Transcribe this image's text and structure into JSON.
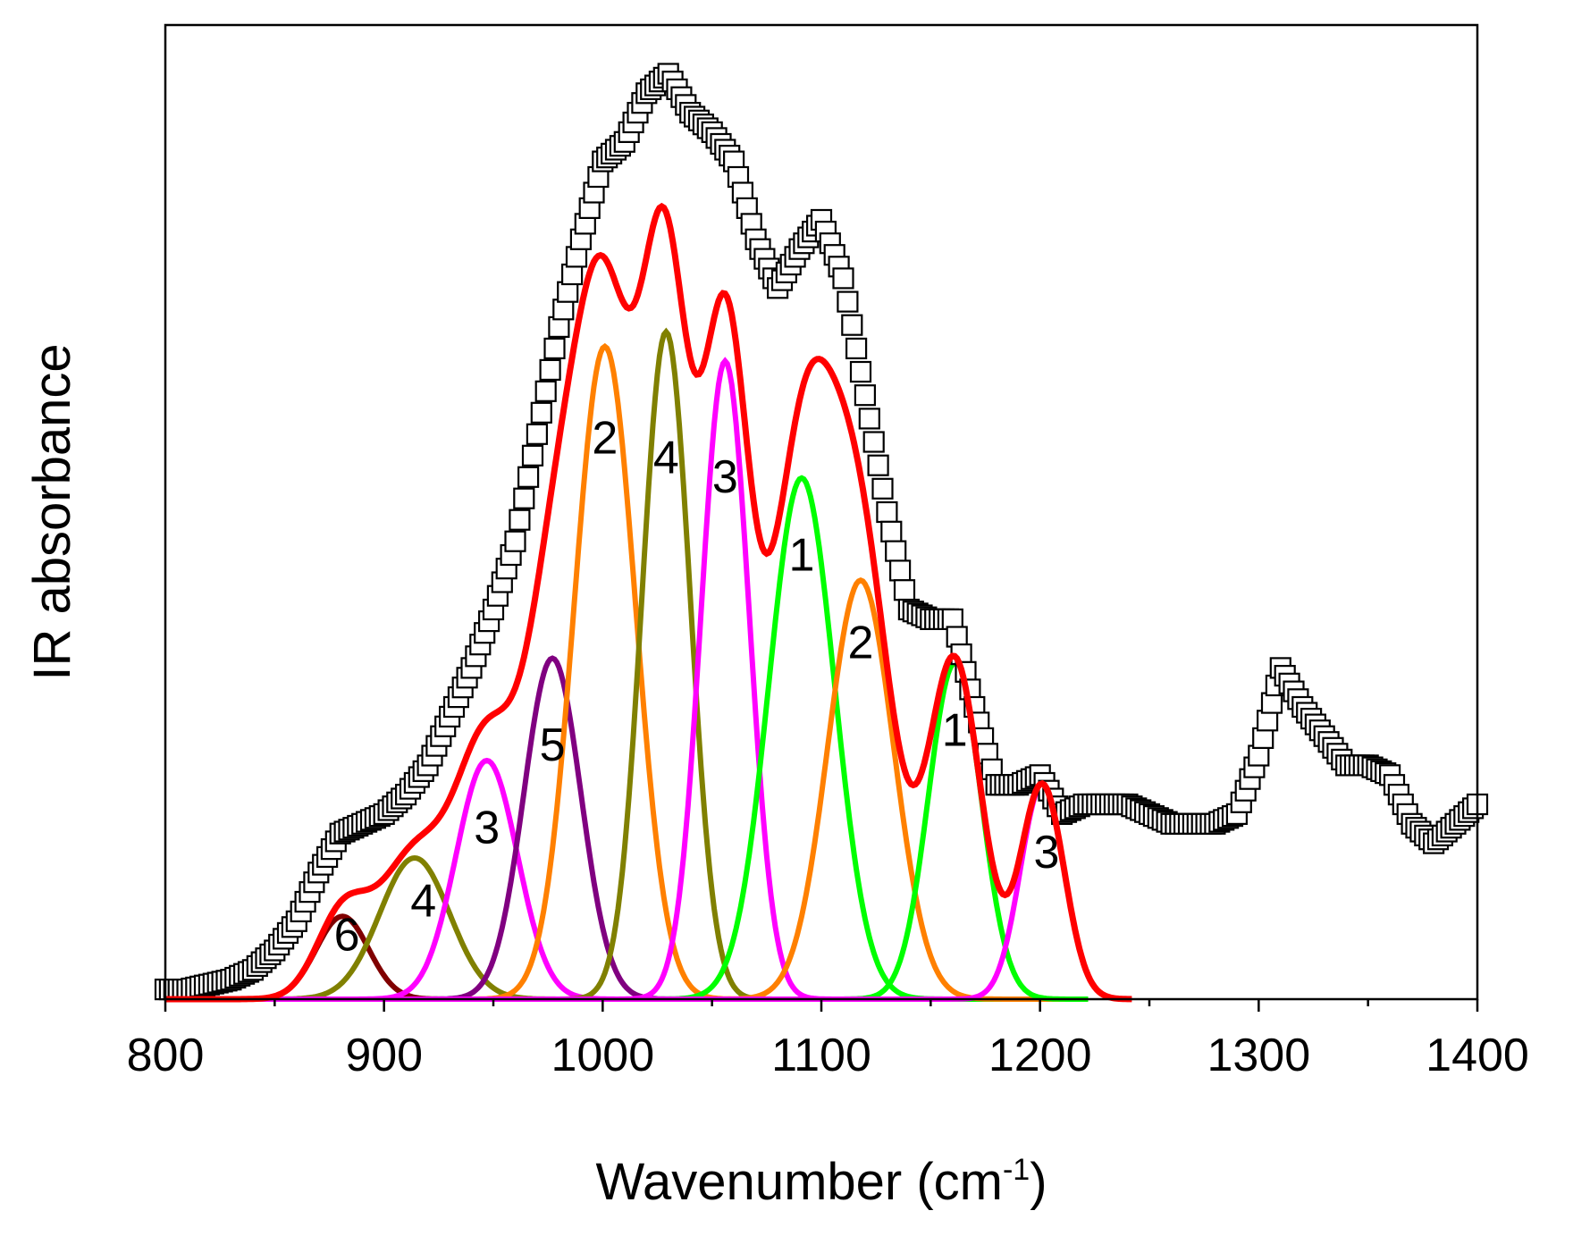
{
  "chart_data": {
    "type": "line",
    "title": "",
    "xlabel": "Wavenumber (cm",
    "xlabel_superscript": "-1",
    "xlabel_suffix": ")",
    "ylabel": "IR absorbance",
    "xlim": [
      800,
      1400
    ],
    "ylim": [
      0,
      1.0
    ],
    "x_ticks": [
      800,
      900,
      1000,
      1100,
      1200,
      1300,
      1400
    ],
    "x_tick_labels": [
      "800",
      "900",
      "1000",
      "1100",
      "1200",
      "1300",
      "1400"
    ],
    "y_ticks_shown": false,
    "grid": false,
    "legend": "none",
    "measured": {
      "name": "",
      "marker": "open-square",
      "color": "#000000",
      "x": [
        800,
        810,
        820,
        830,
        840,
        850,
        860,
        870,
        880,
        890,
        900,
        910,
        920,
        930,
        940,
        950,
        960,
        970,
        980,
        990,
        1000,
        1010,
        1020,
        1030,
        1040,
        1050,
        1060,
        1070,
        1080,
        1090,
        1100,
        1110,
        1120,
        1130,
        1140,
        1150,
        1160,
        1170,
        1180,
        1190,
        1200,
        1210,
        1220,
        1230,
        1240,
        1250,
        1260,
        1270,
        1280,
        1290,
        1300,
        1310,
        1320,
        1330,
        1340,
        1350,
        1360,
        1370,
        1380,
        1390,
        1400
      ],
      "y": [
        0.01,
        0.01,
        0.015,
        0.02,
        0.03,
        0.05,
        0.08,
        0.13,
        0.17,
        0.18,
        0.19,
        0.21,
        0.24,
        0.29,
        0.34,
        0.4,
        0.47,
        0.58,
        0.69,
        0.78,
        0.86,
        0.88,
        0.93,
        0.95,
        0.91,
        0.89,
        0.86,
        0.78,
        0.73,
        0.77,
        0.8,
        0.74,
        0.62,
        0.5,
        0.4,
        0.39,
        0.39,
        0.3,
        0.22,
        0.22,
        0.23,
        0.19,
        0.2,
        0.2,
        0.2,
        0.19,
        0.18,
        0.18,
        0.18,
        0.19,
        0.25,
        0.34,
        0.3,
        0.27,
        0.24,
        0.24,
        0.23,
        0.18,
        0.16,
        0.18,
        0.2
      ]
    },
    "fit": {
      "name": "",
      "color": "#ff0000",
      "x_range": [
        800,
        1242
      ]
    },
    "components": [
      {
        "label": "6",
        "center": 881,
        "height": 0.085,
        "width": 12,
        "color": "#800000",
        "label_x": 883,
        "label_y": 0.05
      },
      {
        "label": "4",
        "center": 914,
        "height": 0.145,
        "width": 16,
        "color": "#808000",
        "label_x": 918,
        "label_y": 0.085
      },
      {
        "label": "3",
        "center": 947,
        "height": 0.245,
        "width": 14,
        "color": "#ff00ff",
        "label_x": 947,
        "label_y": 0.16
      },
      {
        "label": "5",
        "center": 977,
        "height": 0.35,
        "width": 13,
        "color": "#800080",
        "label_x": 977,
        "label_y": 0.245
      },
      {
        "label": "2",
        "center": 1001,
        "height": 0.67,
        "width": 14,
        "color": "#ff8000",
        "label_x": 1001,
        "label_y": 0.56
      },
      {
        "label": "4",
        "center": 1029,
        "height": 0.685,
        "width": 11,
        "color": "#808000",
        "label_x": 1029,
        "label_y": 0.54
      },
      {
        "label": "3",
        "center": 1056,
        "height": 0.655,
        "width": 11,
        "color": "#ff00ff",
        "label_x": 1056,
        "label_y": 0.52
      },
      {
        "label": "1",
        "center": 1091,
        "height": 0.535,
        "width": 15,
        "color": "#00ff00",
        "label_x": 1091,
        "label_y": 0.44
      },
      {
        "label": "2",
        "center": 1118,
        "height": 0.43,
        "width": 15,
        "color": "#ff8000",
        "label_x": 1118,
        "label_y": 0.35
      },
      {
        "label": "1",
        "center": 1161,
        "height": 0.345,
        "width": 12,
        "color": "#00ff00",
        "label_x": 1161,
        "label_y": 0.26
      },
      {
        "label": "3",
        "center": 1201,
        "height": 0.22,
        "width": 10,
        "color": "#ff00ff",
        "label_x": 1203,
        "label_y": 0.135
      }
    ]
  }
}
